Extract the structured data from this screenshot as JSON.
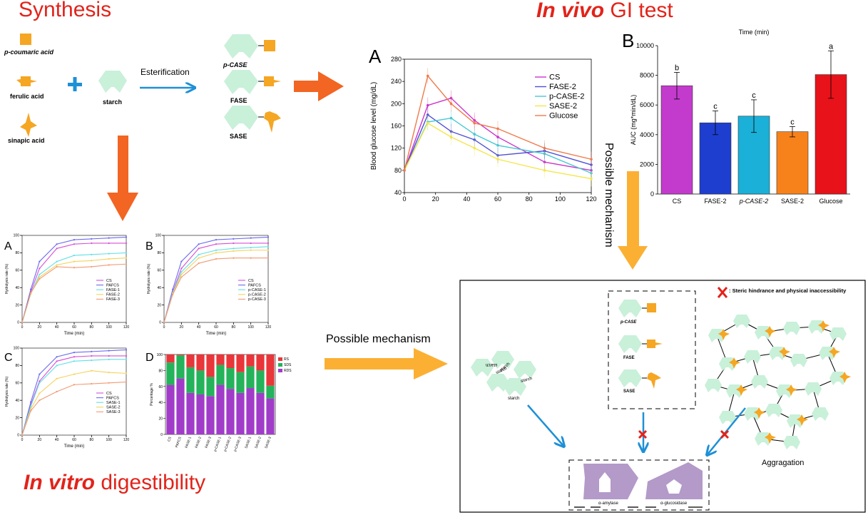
{
  "titles": {
    "synthesis": "Synthesis",
    "invivo_italic": "In vivo",
    "invivo_rest": " GI test",
    "invitro_italic": "In vitro",
    "invitro_rest": " digestibility"
  },
  "synthesis": {
    "reactants": [
      "p-coumaric acid",
      "ferulic acid",
      "sinapic acid"
    ],
    "starch": "starch",
    "reaction": "Esterification",
    "products": [
      "p-CASE",
      "FASE",
      "SASE"
    ]
  },
  "colors": {
    "starch": "#c9f0d9",
    "acid": "#f5a623",
    "red": "#e2231a",
    "orange_arrow": "#f26522",
    "yellow_arrow": "#fbb034",
    "blue_arrow": "#1e90d6",
    "enzyme": "#b39ac9"
  },
  "possible_mechanism": "Possible mechanism",
  "mechanism_box": {
    "legend": "Steric hindrance and physical inaccessibility",
    "products": [
      "p-CASE",
      "FASE",
      "SASE"
    ],
    "starch_words": [
      "starch",
      "starch",
      "starch",
      "starch",
      "starch"
    ],
    "aggregation": "Aggragation",
    "enzymes": [
      "α-amylase",
      "α-glucosidase"
    ]
  },
  "chart_data": [
    {
      "panel": "A",
      "type": "line",
      "xlabel": "",
      "ylabel": "Blood glucose level (mg/dL)",
      "x": [
        0,
        15,
        30,
        45,
        60,
        90,
        120
      ],
      "xticks": [
        0,
        20,
        40,
        60,
        80,
        100,
        120
      ],
      "yticks": [
        40,
        80,
        120,
        160,
        200,
        240,
        280
      ],
      "xlim": [
        0,
        120
      ],
      "ylim": [
        40,
        280
      ],
      "series": [
        {
          "name": "CS",
          "color": "#cc33cc",
          "values": [
            80,
            197,
            210,
            170,
            140,
            95,
            80
          ]
        },
        {
          "name": "FASE-2",
          "color": "#4f4fd6",
          "values": [
            80,
            180,
            150,
            135,
            107,
            115,
            90
          ]
        },
        {
          "name": "p-CASE-2",
          "color": "#46c9d3",
          "values": [
            80,
            167,
            174,
            145,
            125,
            110,
            75
          ]
        },
        {
          "name": "SASE-2",
          "color": "#f5e64b",
          "values": [
            80,
            165,
            140,
            120,
            100,
            80,
            65
          ]
        },
        {
          "name": "Glucose",
          "color": "#f07a4a",
          "values": [
            80,
            250,
            200,
            165,
            155,
            120,
            100
          ]
        }
      ]
    },
    {
      "panel": "B",
      "type": "bar",
      "xlabel": "Time (min)",
      "ylabel": "AUC (mg*min/dL)",
      "categories": [
        "CS",
        "FASE-2",
        "p-CASE-2",
        "SASE-2",
        "Glucose"
      ],
      "values": [
        7300,
        4800,
        5250,
        4200,
        8050
      ],
      "errors": [
        900,
        800,
        1100,
        350,
        1600
      ],
      "letters": [
        "b",
        "c",
        "c",
        "c",
        "a"
      ],
      "colors": [
        "#c23bcc",
        "#1e3ecf",
        "#1ab0d8",
        "#f7821b",
        "#e8121a"
      ],
      "yticks": [
        0,
        2000,
        4000,
        6000,
        8000,
        10000
      ],
      "ylim": [
        0,
        10000
      ]
    },
    {
      "panel": "A",
      "type": "line",
      "xlabel": "Time (min)",
      "ylabel": "Hydrolysis rate (%)",
      "x": [
        0,
        10,
        20,
        40,
        60,
        80,
        100,
        120
      ],
      "xticks": [
        0,
        20,
        40,
        60,
        80,
        100,
        120
      ],
      "yticks": [
        0,
        20,
        40,
        60,
        80,
        100
      ],
      "xlim": [
        0,
        120
      ],
      "ylim": [
        0,
        100
      ],
      "series": [
        {
          "name": "CS",
          "color": "#d74fd7",
          "values": [
            0,
            35,
            62,
            85,
            90,
            91,
            91,
            91
          ]
        },
        {
          "name": "PAFCS",
          "color": "#6b6bf0",
          "values": [
            0,
            38,
            70,
            90,
            95,
            96,
            97,
            98
          ]
        },
        {
          "name": "FASE-1",
          "color": "#5fe0e6",
          "values": [
            0,
            33,
            55,
            70,
            77,
            78,
            79,
            80
          ]
        },
        {
          "name": "FASE-2",
          "color": "#f5d25b",
          "values": [
            0,
            33,
            52,
            66,
            70,
            71,
            73,
            74
          ]
        },
        {
          "name": "FASE-3",
          "color": "#f29a74",
          "values": [
            0,
            34,
            50,
            64,
            63,
            64,
            66,
            67
          ]
        }
      ]
    },
    {
      "panel": "B",
      "type": "line",
      "xlabel": "Time (min)",
      "ylabel": "Hydrolysis rate (%)",
      "x": [
        0,
        10,
        20,
        40,
        60,
        80,
        100,
        120
      ],
      "xticks": [
        0,
        20,
        40,
        60,
        80,
        100,
        120
      ],
      "yticks": [
        0,
        20,
        40,
        60,
        80,
        100
      ],
      "xlim": [
        0,
        120
      ],
      "ylim": [
        0,
        100
      ],
      "series": [
        {
          "name": "CS",
          "color": "#d74fd7",
          "values": [
            0,
            35,
            62,
            85,
            90,
            91,
            91,
            91
          ]
        },
        {
          "name": "PAFCS",
          "color": "#6b6bf0",
          "values": [
            0,
            38,
            70,
            90,
            95,
            96,
            97,
            98
          ]
        },
        {
          "name": "p-CASE-1",
          "color": "#5fe0e6",
          "values": [
            0,
            34,
            58,
            78,
            83,
            85,
            86,
            87
          ]
        },
        {
          "name": "p-CASE-2",
          "color": "#f5d25b",
          "values": [
            0,
            33,
            55,
            74,
            80,
            82,
            83,
            83
          ]
        },
        {
          "name": "p-CASE-3",
          "color": "#f29a74",
          "values": [
            0,
            32,
            52,
            68,
            73,
            74,
            74,
            74
          ]
        }
      ]
    },
    {
      "panel": "C",
      "type": "line",
      "xlabel": "Time (min)",
      "ylabel": "Hydrolysis rate (%)",
      "x": [
        0,
        10,
        20,
        40,
        60,
        80,
        100,
        120
      ],
      "xticks": [
        0,
        20,
        40,
        60,
        80,
        100,
        120
      ],
      "yticks": [
        0,
        20,
        40,
        60,
        80,
        100
      ],
      "xlim": [
        0,
        120
      ],
      "ylim": [
        0,
        100
      ],
      "series": [
        {
          "name": "CS",
          "color": "#d74fd7",
          "values": [
            0,
            35,
            62,
            85,
            90,
            91,
            91,
            91
          ]
        },
        {
          "name": "PAFCS",
          "color": "#6b6bf0",
          "values": [
            0,
            38,
            70,
            90,
            95,
            96,
            97,
            98
          ]
        },
        {
          "name": "SASE-1",
          "color": "#5fe0e6",
          "values": [
            0,
            33,
            60,
            80,
            85,
            86,
            87,
            87
          ]
        },
        {
          "name": "SASE-2",
          "color": "#f5d25b",
          "values": [
            0,
            30,
            48,
            65,
            70,
            74,
            72,
            71
          ]
        },
        {
          "name": "SASE-3",
          "color": "#f29a74",
          "values": [
            0,
            28,
            40,
            50,
            58,
            59,
            60,
            61
          ]
        }
      ]
    },
    {
      "panel": "D",
      "type": "bar",
      "stacked": true,
      "xlabel": "",
      "ylabel": "Percentage %",
      "categories": [
        "CS",
        "PAFCS",
        "FASE-1",
        "FASE-2",
        "FASE-3",
        "p-CASE-1",
        "p-CASE-2",
        "p-CASE-3",
        "SASE-1",
        "SASE-2",
        "SASE-3"
      ],
      "yticks": [
        0,
        20,
        40,
        60,
        80,
        100
      ],
      "ylim": [
        0,
        100
      ],
      "series": [
        {
          "name": "RDS",
          "color": "#a13cc9",
          "values": [
            62,
            70,
            52,
            50,
            48,
            62,
            57,
            52,
            58,
            52,
            45
          ]
        },
        {
          "name": "SDS",
          "color": "#24b35a",
          "values": [
            28,
            29,
            32,
            30,
            24,
            25,
            26,
            26,
            27,
            28,
            16
          ]
        },
        {
          "name": "RS",
          "color": "#e8363a",
          "values": [
            10,
            1,
            16,
            20,
            28,
            13,
            17,
            22,
            15,
            20,
            39
          ]
        }
      ],
      "legend_order": [
        "RS",
        "SDS",
        "RDS"
      ]
    }
  ]
}
